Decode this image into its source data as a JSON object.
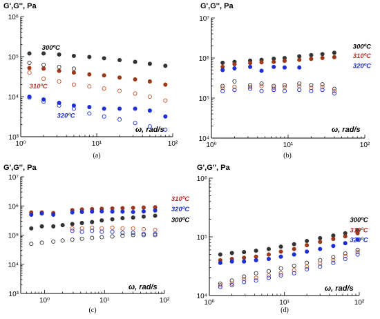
{
  "chart_data": [
    {
      "id": "a",
      "type": "scatter",
      "panel_label": "(a)",
      "ylabel": "G',G'', Pa",
      "xlabel": "ω, rad/s",
      "xscale": "log",
      "yscale": "log",
      "xlim": [
        1,
        100
      ],
      "ylim": [
        1000,
        1000000
      ],
      "x_ticks": [
        {
          "v": 1,
          "t": "10⁰"
        },
        {
          "v": 10,
          "t": "10¹"
        },
        {
          "v": 100,
          "t": "10²"
        }
      ],
      "y_ticks": [
        {
          "v": 1000,
          "t": "10³"
        },
        {
          "v": 10000,
          "t": "10⁴"
        },
        {
          "v": 100000,
          "t": "10⁵"
        },
        {
          "v": 1000000,
          "t": "10⁶"
        }
      ],
      "series": [
        {
          "label": "300ºC",
          "color": "#333333",
          "filled": true,
          "x": [
            1.3,
            2,
            3.2,
            5,
            8,
            12.5,
            20,
            32,
            50,
            80
          ],
          "y": [
            120000,
            120000,
            113000,
            104000,
            98000,
            91000,
            82000,
            74000,
            66000,
            59000
          ]
        },
        {
          "label": "300ºC",
          "color": "#333333",
          "filled": false,
          "x": [
            1.3,
            2,
            3.2,
            5
          ],
          "y": [
            70000,
            62000,
            55000,
            50000
          ]
        },
        {
          "label": "310ºC",
          "color": "#9b3a1a",
          "filled": true,
          "x": [
            1.3,
            2,
            3.2,
            5,
            8,
            12.5,
            20,
            32,
            50,
            80
          ],
          "y": [
            52000,
            50000,
            44000,
            40000,
            36000,
            34000,
            30000,
            27000,
            24000,
            20000
          ]
        },
        {
          "label": "310ºC",
          "color": "#c0502a",
          "filled": false,
          "x": [
            1.3,
            2,
            3.2,
            5,
            8,
            12.5,
            20,
            32,
            50,
            80
          ],
          "y": [
            40000,
            28000,
            24000,
            20000,
            18000,
            16000,
            14000,
            12000,
            10000,
            8000
          ]
        },
        {
          "label": "320ºC",
          "color": "#1f2fd1",
          "filled": true,
          "x": [
            1.3,
            2,
            3.2,
            5,
            8,
            12.5,
            20,
            32,
            50,
            80
          ],
          "y": [
            10000,
            8500,
            7000,
            6000,
            5500,
            5000,
            5000,
            5000,
            4500,
            3200
          ]
        },
        {
          "label": "320ºC",
          "color": "#1f2fd1",
          "filled": false,
          "x": [
            1.3,
            2,
            3.2,
            5,
            8,
            12.5,
            20,
            32,
            50,
            80
          ],
          "y": [
            9500,
            7500,
            6000,
            5000,
            3800,
            3200,
            2700,
            2200,
            1800,
            1500
          ]
        }
      ],
      "annotations": [
        {
          "text": "300ºC",
          "color": "#000000",
          "x": 1.9,
          "y": 150000
        },
        {
          "text": "310ºC",
          "color": "#c0302a",
          "x": 1.3,
          "y": 16000
        },
        {
          "text": "320ºC",
          "color": "#1f2fd1",
          "x": 3.0,
          "y": 3000
        }
      ]
    },
    {
      "id": "b",
      "type": "scatter",
      "panel_label": "(b)",
      "ylabel": "G',G'', Pa",
      "xlabel": "ω, rad/s",
      "xscale": "log",
      "yscale": "log",
      "xlim": [
        1,
        100
      ],
      "ylim": [
        10000,
        10000000
      ],
      "x_ticks": [
        {
          "v": 1,
          "t": "10⁰"
        },
        {
          "v": 10,
          "t": "10¹"
        },
        {
          "v": 100,
          "t": "10²"
        }
      ],
      "y_ticks": [
        {
          "v": 10000,
          "t": "10⁴"
        },
        {
          "v": 100000,
          "t": "10⁵"
        },
        {
          "v": 1000000,
          "t": "10⁶"
        },
        {
          "v": 10000000,
          "t": "10⁷"
        }
      ],
      "series": [
        {
          "label": "300ºC",
          "color": "#333333",
          "filled": true,
          "x": [
            1.4,
            2,
            3.2,
            4.5,
            6.5,
            9,
            14,
            20,
            28,
            40
          ],
          "y": [
            760000,
            800000,
            860000,
            900000,
            960000,
            1000000,
            1100000,
            1180000,
            1250000,
            1350000
          ]
        },
        {
          "label": "310ºC",
          "color": "#9b3a1a",
          "filled": true,
          "x": [
            1.4,
            2,
            3.2,
            4.5,
            6.5,
            9,
            14,
            20,
            28,
            40
          ],
          "y": [
            600000,
            700000,
            750000,
            780000,
            800000,
            850000,
            900000,
            950000,
            1000000,
            1050000
          ]
        },
        {
          "label": "320ºC",
          "color": "#1f2fd1",
          "filled": true,
          "x": [
            1.4,
            2,
            3.2,
            4.5,
            6.5,
            9,
            14
          ],
          "y": [
            500000,
            550000,
            600000,
            480000,
            600000,
            580000,
            580000
          ]
        },
        {
          "label": "300ºC",
          "color": "#333333",
          "filled": false,
          "x": [
            1.4,
            2,
            3.2,
            4.5,
            6.5,
            9,
            14,
            20,
            28,
            40
          ],
          "y": [
            200000,
            260000,
            210000,
            230000,
            200000,
            210000,
            230000,
            210000,
            220000,
            170000
          ]
        },
        {
          "label": "310ºC",
          "color": "#c0502a",
          "filled": false,
          "x": [
            1.4,
            2,
            3.2,
            4.5,
            6.5,
            9,
            14,
            20,
            28,
            40
          ],
          "y": [
            180000,
            190000,
            190000,
            200000,
            180000,
            190000,
            200000,
            180000,
            190000,
            150000
          ]
        },
        {
          "label": "320ºC",
          "color": "#1f2fd1",
          "filled": false,
          "x": [
            1.4,
            2,
            3.2,
            4.5,
            6.5,
            9,
            14,
            20,
            28,
            40
          ],
          "y": [
            150000,
            160000,
            170000,
            150000,
            160000,
            150000,
            160000,
            150000,
            160000,
            130000
          ]
        }
      ],
      "annotations": [
        {
          "text": "300ºC",
          "color": "#000000",
          "x": 70,
          "y": 1700000
        },
        {
          "text": "310ºC",
          "color": "#c0302a",
          "x": 70,
          "y": 1000000
        },
        {
          "text": "320ºC",
          "color": "#1f2fd1",
          "x": 70,
          "y": 560000
        }
      ]
    },
    {
      "id": "c",
      "type": "scatter",
      "panel_label": "(c)",
      "ylabel": "G',G'', Pa",
      "xlabel": "ω, rad/s",
      "xscale": "log",
      "yscale": "log",
      "xlim": [
        0.4,
        100
      ],
      "ylim": [
        1000,
        10000000
      ],
      "x_ticks": [
        {
          "v": 1,
          "t": "10⁰"
        },
        {
          "v": 10,
          "t": "10¹"
        },
        {
          "v": 100,
          "t": "10²"
        }
      ],
      "y_ticks": [
        {
          "v": 1000,
          "t": "10³"
        },
        {
          "v": 10000,
          "t": "10⁴"
        },
        {
          "v": 100000,
          "t": "10⁵"
        },
        {
          "v": 1000000,
          "t": "10⁶"
        },
        {
          "v": 10000000,
          "t": "10⁷"
        }
      ],
      "series": [
        {
          "label": "310ºC",
          "color": "#9b3a1a",
          "filled": true,
          "x": [
            0.6,
            0.9,
            1.4,
            2.9,
            4.2,
            6.2,
            9,
            13.5,
            20,
            30,
            45,
            70
          ],
          "y": [
            600000,
            600000,
            570000,
            720000,
            760000,
            780000,
            800000,
            820000,
            840000,
            860000,
            880000,
            900000
          ]
        },
        {
          "label": "320ºC",
          "color": "#1f2fd1",
          "filled": true,
          "x": [
            0.6,
            0.9,
            1.4,
            2.9,
            4.2,
            6.2,
            9,
            13.5,
            20,
            30,
            45,
            70
          ],
          "y": [
            500000,
            550000,
            500000,
            600000,
            620000,
            640000,
            650000,
            640000,
            640000,
            620000,
            650000,
            700000
          ]
        },
        {
          "label": "300ºC",
          "color": "#333333",
          "filled": true,
          "x": [
            0.6,
            0.9,
            1.4,
            2,
            2.9,
            4.2,
            6.2,
            9,
            13.5,
            20,
            30,
            45,
            70
          ],
          "y": [
            170000,
            200000,
            200000,
            220000,
            240000,
            260000,
            280000,
            320000,
            350000,
            380000,
            400000,
            430000,
            460000
          ]
        },
        {
          "label": "310ºC",
          "color": "#c0502a",
          "filled": false,
          "x": [
            2.9,
            4.2,
            6.2,
            9,
            13.5,
            20,
            30,
            45,
            70
          ],
          "y": [
            170000,
            170000,
            180000,
            170000,
            180000,
            170000,
            170000,
            160000,
            150000
          ]
        },
        {
          "label": "320ºC",
          "color": "#1f2fd1",
          "filled": false,
          "x": [
            2.9,
            4.2,
            6.2,
            9,
            13.5,
            20,
            30,
            45,
            70
          ],
          "y": [
            140000,
            130000,
            140000,
            130000,
            130000,
            120000,
            120000,
            110000,
            110000
          ]
        },
        {
          "label": "300ºC",
          "color": "#333333",
          "filled": false,
          "x": [
            0.6,
            0.9,
            1.4,
            2,
            2.9,
            4.2,
            6.2,
            9,
            13.5,
            20,
            30,
            45,
            70
          ],
          "y": [
            50000,
            55000,
            60000,
            65000,
            70000,
            75000,
            80000,
            85000,
            90000,
            95000,
            100000,
            100000,
            100000
          ]
        }
      ],
      "annotations": [
        {
          "text": "310ºC",
          "color": "#c0302a",
          "x": 130,
          "y": 1500000
        },
        {
          "text": "320ºC",
          "color": "#1f2fd1",
          "x": 130,
          "y": 650000
        },
        {
          "text": "300ºC",
          "color": "#000000",
          "x": 130,
          "y": 280000
        }
      ]
    },
    {
      "id": "d",
      "type": "scatter",
      "panel_label": "(d)",
      "ylabel": "G',G'', Pa",
      "xlabel": "ω, rad/s",
      "xscale": "log",
      "yscale": "log",
      "xlim": [
        1,
        100
      ],
      "ylim": [
        10000,
        1000000
      ],
      "x_ticks": [
        {
          "v": 1,
          "t": "10⁰"
        },
        {
          "v": 10,
          "t": "10¹"
        },
        {
          "v": 100,
          "t": "10²"
        }
      ],
      "y_ticks": [
        {
          "v": 10000,
          "t": "10⁴"
        },
        {
          "v": 100000,
          "t": "10⁵"
        },
        {
          "v": 1000000,
          "t": "10⁶"
        }
      ],
      "series": [
        {
          "label": "300ºC",
          "color": "#333333",
          "filled": true,
          "x": [
            1.4,
            2,
            2.9,
            4.2,
            6.2,
            9,
            13.5,
            20,
            30,
            45,
            65,
            95
          ],
          "y": [
            50000,
            53000,
            55000,
            58000,
            62000,
            68000,
            75000,
            85000,
            95000,
            105000,
            115000,
            130000
          ]
        },
        {
          "label": "310ºC",
          "color": "#9b3a1a",
          "filled": true,
          "x": [
            1.4,
            2,
            2.9,
            4.2,
            6.2,
            9,
            13.5,
            20,
            30,
            45,
            65,
            95
          ],
          "y": [
            40000,
            42000,
            44000,
            46000,
            50000,
            56000,
            62000,
            72000,
            82000,
            92000,
            102000,
            115000
          ]
        },
        {
          "label": "320ºC",
          "color": "#1f2fd1",
          "filled": true,
          "x": [
            1.4,
            2,
            2.9,
            4.2,
            6.2,
            9,
            13.5,
            20,
            30,
            45,
            65,
            95
          ],
          "y": [
            36000,
            38000,
            38000,
            40000,
            42000,
            46000,
            50000,
            56000,
            62000,
            70000,
            78000,
            90000
          ]
        },
        {
          "label": "300ºC",
          "color": "#333333",
          "filled": false,
          "x": [
            1.4,
            2,
            2.9,
            4.2,
            6.2,
            9,
            13.5,
            20,
            30,
            45,
            65,
            95
          ],
          "y": [
            16000,
            18000,
            21000,
            24000,
            26000,
            29000,
            32000,
            36000,
            40000,
            45000,
            52000,
            60000
          ]
        },
        {
          "label": "310ºC",
          "color": "#c0502a",
          "filled": false,
          "x": [
            1.4,
            2,
            2.9,
            4.2,
            6.2,
            9,
            13.5,
            20,
            30,
            45,
            65,
            95
          ],
          "y": [
            15000,
            16000,
            19000,
            20000,
            22000,
            24000,
            27000,
            31000,
            35000,
            40000,
            47000,
            55000
          ]
        },
        {
          "label": "320ºC",
          "color": "#1f2fd1",
          "filled": false,
          "x": [
            1.4,
            2,
            2.9,
            4.2,
            6.2,
            9,
            13.5,
            20,
            30,
            45,
            65,
            95
          ],
          "y": [
            14000,
            15000,
            17000,
            18000,
            20000,
            22000,
            24000,
            28000,
            31000,
            36000,
            42000,
            50000
          ]
        }
      ],
      "annotations": [
        {
          "text": "300ºC",
          "color": "#000000",
          "x": 75,
          "y": 180000
        },
        {
          "text": "310ºC",
          "color": "#c0302a",
          "x": 75,
          "y": 120000
        },
        {
          "text": "320ºC",
          "color": "#1f2fd1",
          "x": 75,
          "y": 82000
        }
      ]
    }
  ]
}
